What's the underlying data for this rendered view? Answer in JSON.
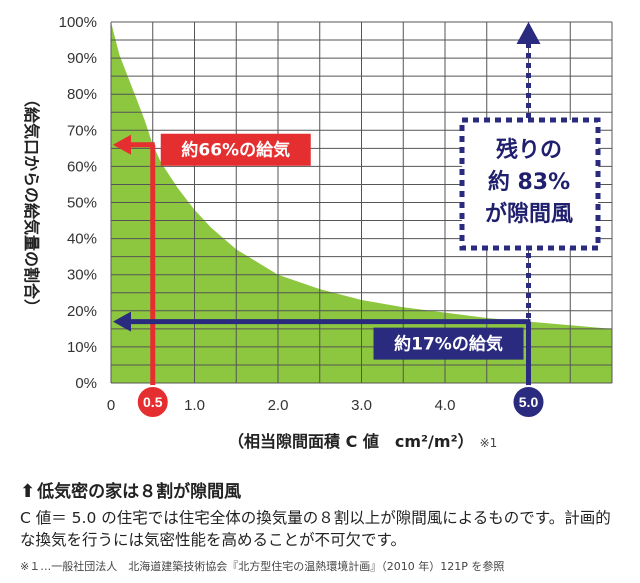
{
  "chart_data": {
    "type": "area",
    "x": [
      0.0,
      0.1,
      0.2,
      0.3,
      0.4,
      0.5,
      0.6,
      0.8,
      1.0,
      1.2,
      1.5,
      2.0,
      2.5,
      3.0,
      3.5,
      4.0,
      4.5,
      5.0,
      5.5,
      6.0
    ],
    "values": [
      100,
      91,
      85,
      79,
      73,
      66,
      61,
      54,
      48,
      43,
      37,
      30,
      26,
      23,
      21,
      19.5,
      18,
      17,
      16,
      15
    ],
    "yticks": [
      "0%",
      "10%",
      "20%",
      "30%",
      "40%",
      "50%",
      "60%",
      "70%",
      "80%",
      "90%",
      "100%"
    ],
    "xticks": [
      "0",
      "1.0",
      "2.0",
      "3.0",
      "4.0"
    ],
    "ylim": [
      0,
      100
    ],
    "xlim": [
      0,
      6
    ],
    "ylabel": "（給気口からの給気量の割合）",
    "xlabel": "（相当隙間面積 C 値　cm²/m²）",
    "xlabel_note": "※1",
    "grid": true,
    "fill_color": "#8dc63f",
    "markers": [
      {
        "x": 0.5,
        "label": "0.5",
        "color": "#e52e30",
        "level": 66,
        "callout": "約66%の給気"
      },
      {
        "x": 5.0,
        "label": "5.0",
        "color": "#2a2b7f",
        "level": 17,
        "callout": "約17%の給気"
      }
    ],
    "residual": {
      "lines": [
        "残りの",
        "約 83%",
        "が隙間風"
      ],
      "color": "#2a2b7f"
    }
  },
  "caption": {
    "title": "低気密の家は８割が隙間風",
    "body": "C 値＝ 5.0 の住宅では住宅全体の換気量の８割以上が隙間風によるものです。計画的な換気を行うには気密性能を高めることが不可欠です。",
    "footnote": "※１…一般社団法人　北海道建築技術協会『北方型住宅の温熱環境計画』（2010 年）121P を参照"
  },
  "colors": {
    "red": "#e52e30",
    "navy": "#2a2b7f",
    "green": "#8dc63f",
    "grid": "#555555"
  }
}
